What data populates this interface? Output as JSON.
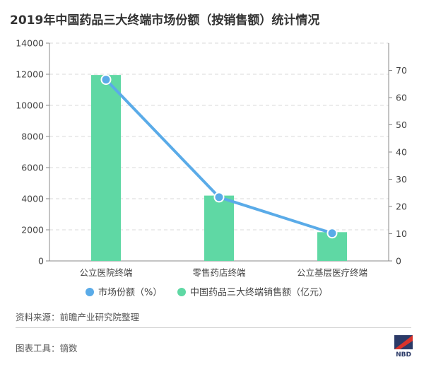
{
  "title": "2019年中国药品三大终端市场份额（按销售额）统计情况",
  "source": "资料来源：前瞻产业研究院整理",
  "tool": "图表工具：镝数",
  "logo_text": "NBD",
  "colors": {
    "bar": "#5fd8a4",
    "line": "#5aabe8",
    "grid": "#d9d9d9",
    "axis": "#888888"
  },
  "chart_data": {
    "type": "bar",
    "categories": [
      "公立医院终端",
      "零售药店终端",
      "公立基层医疗终端"
    ],
    "series": [
      {
        "name": "中国药品三大终端销售额（亿元）",
        "type": "bar",
        "axis": "left",
        "values": [
          11950,
          4200,
          1850
        ]
      },
      {
        "name": "市场份额（%）",
        "type": "line",
        "axis": "right",
        "values": [
          66.6,
          23.4,
          10.2
        ]
      }
    ],
    "ylim_left": [
      0,
      14000
    ],
    "yticks_left": [
      0,
      2000,
      4000,
      6000,
      8000,
      10000,
      12000,
      14000
    ],
    "ylim_right": [
      0,
      80
    ],
    "yticks_right": [
      0,
      10,
      20,
      30,
      40,
      50,
      60,
      70
    ],
    "legend": [
      "市场份额（%）",
      "中国药品三大终端销售额（亿元）"
    ],
    "legend_position": "bottom",
    "grid": true
  }
}
